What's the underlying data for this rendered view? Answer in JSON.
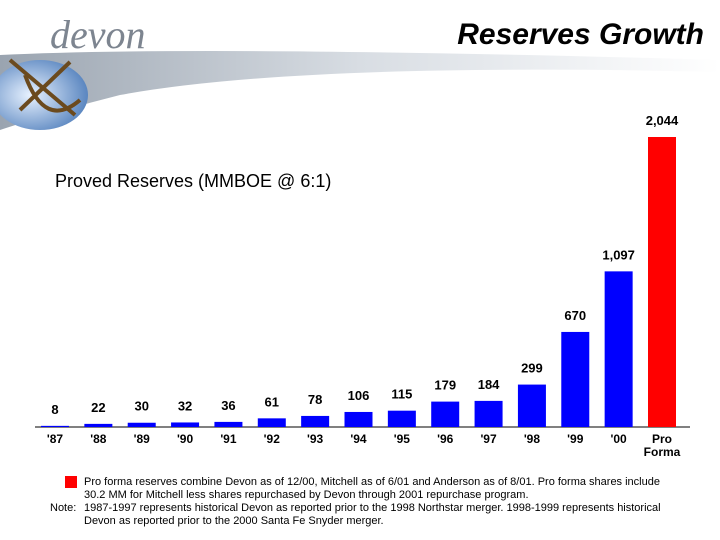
{
  "header": {
    "logo": "devon",
    "title": "Reserves Growth"
  },
  "chart_data": {
    "type": "bar",
    "title": "Proved Reserves (MMBOE @ 6:1)",
    "categories": [
      "'87",
      "'88",
      "'89",
      "'90",
      "'91",
      "'92",
      "'93",
      "'94",
      "'95",
      "'96",
      "'97",
      "'98",
      "'99",
      "'00",
      "Pro Forma"
    ],
    "values": [
      8,
      22,
      30,
      32,
      36,
      61,
      78,
      106,
      115,
      179,
      184,
      299,
      670,
      1097,
      2044
    ],
    "value_labels": [
      "8",
      "22",
      "30",
      "32",
      "36",
      "61",
      "78",
      "106",
      "115",
      "179",
      "184",
      "299",
      "670",
      "1,097",
      "2,044"
    ],
    "colors": [
      "#0000ff",
      "#0000ff",
      "#0000ff",
      "#0000ff",
      "#0000ff",
      "#0000ff",
      "#0000ff",
      "#0000ff",
      "#0000ff",
      "#0000ff",
      "#0000ff",
      "#0000ff",
      "#0000ff",
      "#0000ff",
      "#ff0000"
    ]
  },
  "footnotes": {
    "legend_text": "Pro forma reserves combine Devon as of 12/00, Mitchell as of 6/01 and Anderson as of 8/01.  Pro forma shares include 30.2 MM for Mitchell less shares repurchased by Devon through 2001 repurchase program.",
    "note_label": "Note:",
    "note_text": "1987-1997 represents historical Devon as reported prior to the 1998 Northstar merger.  1998-1999 represents historical Devon as reported prior to the 2000 Santa Fe Snyder merger."
  }
}
